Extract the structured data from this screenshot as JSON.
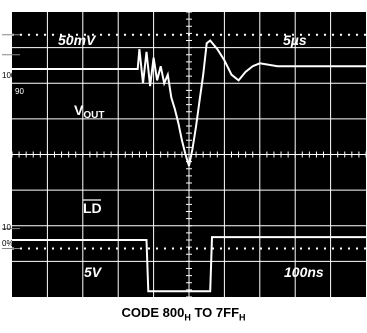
{
  "chart_data": {
    "type": "line",
    "top_left_scale": "50mV",
    "top_right_scale": "5µs",
    "bottom_left_scale": "5V",
    "bottom_right_scale": "100ns",
    "left_markers": [
      "100",
      "90",
      "10",
      "0%"
    ],
    "series": [
      {
        "name": "V_OUT",
        "label_main": "V",
        "label_sub": "OUT",
        "x": [
          0,
          3.55,
          3.6,
          3.7,
          3.8,
          3.9,
          4.0,
          4.1,
          4.2,
          4.3,
          4.4,
          4.5,
          4.6,
          4.7,
          4.8,
          4.9,
          5.0,
          5.1,
          5.2,
          5.3,
          5.4,
          5.5,
          5.6,
          5.8,
          6.0,
          6.2,
          6.4,
          6.6,
          6.8,
          7.0,
          7.5,
          8.0,
          9.0,
          10.0
        ],
        "y": [
          8.0,
          8.0,
          8.7,
          7.5,
          8.6,
          7.4,
          8.4,
          7.6,
          8.1,
          7.5,
          7.8,
          7.0,
          6.6,
          6.1,
          5.5,
          5.0,
          4.6,
          5.2,
          6.0,
          6.9,
          7.8,
          8.9,
          9.0,
          8.7,
          8.3,
          7.8,
          7.6,
          7.9,
          8.1,
          8.2,
          8.1,
          8.1,
          8.1,
          8.1
        ]
      },
      {
        "name": "LD",
        "label": "LD",
        "x": [
          0,
          3.8,
          3.85,
          5.6,
          5.65,
          10.0
        ],
        "y": [
          2.0,
          2.0,
          0.2,
          0.2,
          2.1,
          2.1
        ]
      }
    ],
    "xlim": [
      0,
      10
    ],
    "ylim": [
      0,
      10
    ],
    "grid": true
  },
  "caption": {
    "prefix": "CODE 800",
    "sub1": "H",
    "middle": " TO 7FF",
    "sub2": "H"
  },
  "colors": {
    "screen": "#000000",
    "trace": "#ffffff",
    "grid": "#ffffff"
  }
}
